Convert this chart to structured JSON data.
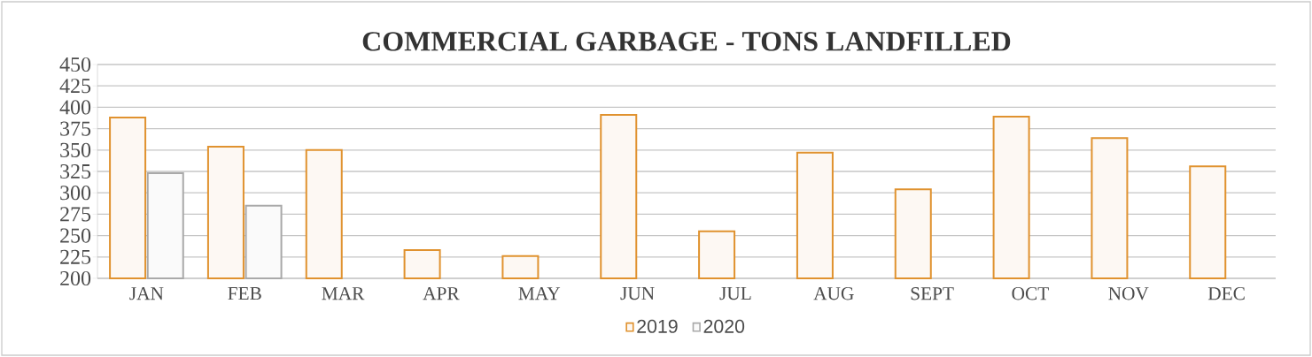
{
  "chart_data": {
    "type": "bar",
    "title": "COMMERCIAL GARBAGE - TONS LANDFILLED",
    "categories": [
      "JAN",
      "FEB",
      "MAR",
      "APR",
      "MAY",
      "JUN",
      "JUL",
      "AUG",
      "SEPT",
      "OCT",
      "NOV",
      "DEC"
    ],
    "series": [
      {
        "name": "2019",
        "color": "#e0922f",
        "values": [
          388,
          354,
          350,
          233,
          226,
          391,
          255,
          347,
          304,
          389,
          364,
          331
        ]
      },
      {
        "name": "2020",
        "color": "#a9a9a9",
        "values": [
          323,
          285,
          null,
          null,
          null,
          null,
          null,
          null,
          null,
          null,
          null,
          null
        ]
      }
    ],
    "ylim": [
      200,
      450
    ],
    "yticks": [
      200,
      225,
      250,
      275,
      300,
      325,
      350,
      375,
      400,
      425,
      450
    ],
    "grid": "y",
    "legend": "bottom"
  }
}
